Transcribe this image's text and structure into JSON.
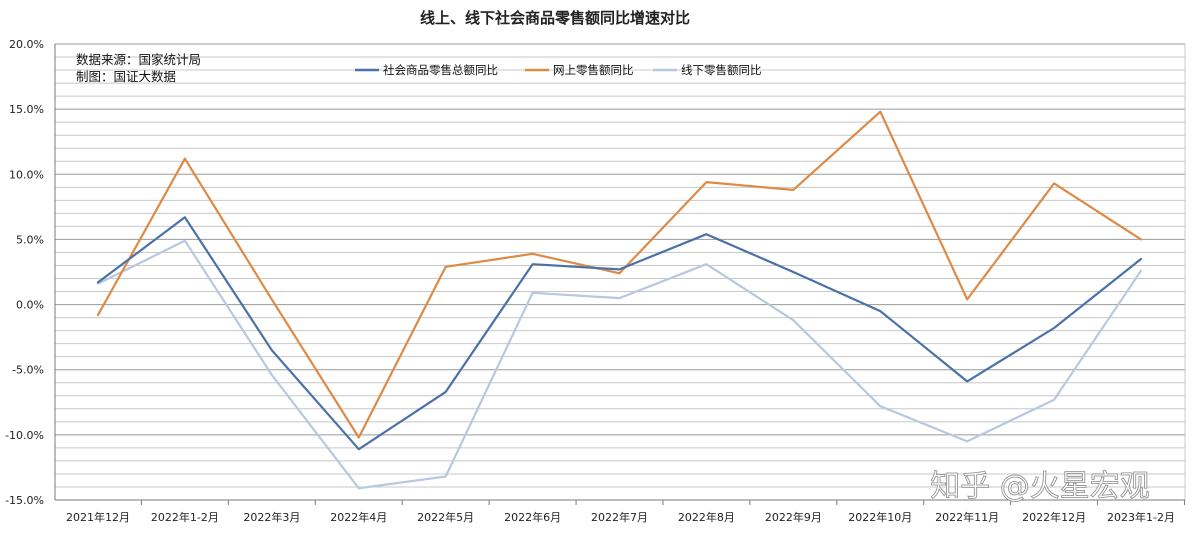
{
  "chart_data": {
    "type": "line",
    "title": "线上、线下社会商品零售额同比增速对比",
    "source_note": "数据来源：国家统计局",
    "maker_note": "制图：国证大数据",
    "watermark": "知乎 @火星宏观",
    "categories": [
      "2021年12月",
      "2022年1-2月",
      "2022年3月",
      "2022年4月",
      "2022年5月",
      "2022年6月",
      "2022年7月",
      "2022年8月",
      "2022年9月",
      "2022年10月",
      "2022年11月",
      "2022年12月",
      "2023年1-2月"
    ],
    "ylim": [
      -15,
      20
    ],
    "yticks": [
      -15,
      -10,
      -5,
      0,
      5,
      10,
      15,
      20
    ],
    "ytick_labels": [
      "-15.0%",
      "-10.0%",
      "-5.0%",
      "0.0%",
      "5.0%",
      "10.0%",
      "15.0%",
      "20.0%"
    ],
    "minor_grid_step": 1,
    "legend_position": "top-center",
    "series": [
      {
        "name": "社会商品零售总额同比",
        "color": "#4a72a8",
        "values": [
          1.7,
          6.7,
          -3.5,
          -11.1,
          -6.7,
          3.1,
          2.7,
          5.4,
          2.5,
          -0.5,
          -5.9,
          -1.8,
          3.5
        ]
      },
      {
        "name": "网上零售额同比",
        "color": "#de8a47",
        "values": [
          -0.8,
          11.2,
          0.4,
          -10.2,
          2.9,
          3.9,
          2.4,
          9.4,
          8.8,
          14.8,
          0.4,
          9.3,
          5.0
        ]
      },
      {
        "name": "线下零售额同比",
        "color": "#b8c8e0",
        "values": [
          1.6,
          4.9,
          -5.4,
          -14.1,
          -13.2,
          0.9,
          0.5,
          3.1,
          -1.2,
          -7.8,
          -10.5,
          -7.3,
          2.6
        ]
      }
    ]
  }
}
